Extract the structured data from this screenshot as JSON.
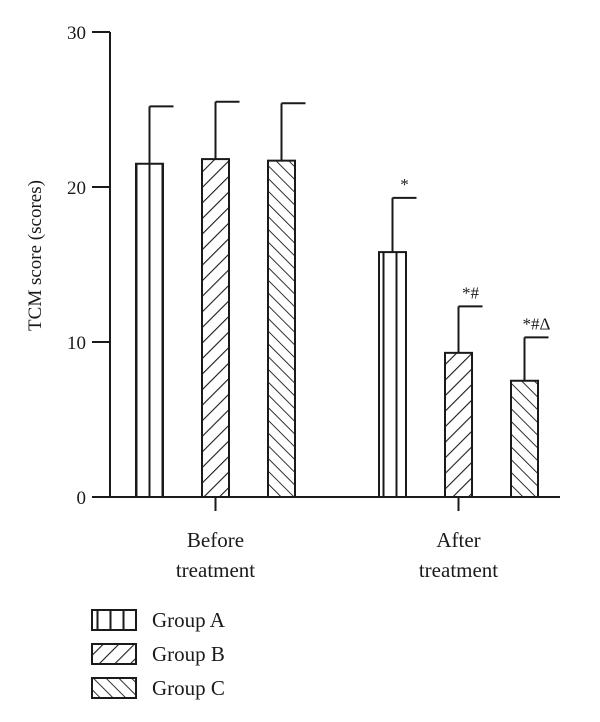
{
  "chart_data": {
    "type": "bar",
    "title": "",
    "ylabel": "TCM score (scores)",
    "xlabel": "",
    "ylim": [
      0,
      30
    ],
    "yticks": [
      0,
      10,
      20,
      30
    ],
    "categories": [
      {
        "lines": [
          "Before",
          "treatment"
        ]
      },
      {
        "lines": [
          "After",
          "treatment"
        ]
      }
    ],
    "series": [
      {
        "name": "Group A",
        "pattern": "vertical",
        "values": [
          21.5,
          15.8
        ],
        "errors": [
          3.7,
          3.5
        ],
        "annotations": [
          "",
          "*"
        ]
      },
      {
        "name": "Group B",
        "pattern": "diagonal-right",
        "values": [
          21.8,
          9.3
        ],
        "errors": [
          3.7,
          3.0
        ],
        "annotations": [
          "",
          "*#"
        ]
      },
      {
        "name": "Group C",
        "pattern": "diagonal-left",
        "values": [
          21.7,
          7.5
        ],
        "errors": [
          3.7,
          2.8
        ],
        "annotations": [
          "",
          "*#Δ"
        ]
      }
    ],
    "legend": {
      "position": "bottom-left"
    },
    "grid": false,
    "colors": {
      "stroke": "#1a1a1a",
      "fill": "#ffffff"
    }
  }
}
